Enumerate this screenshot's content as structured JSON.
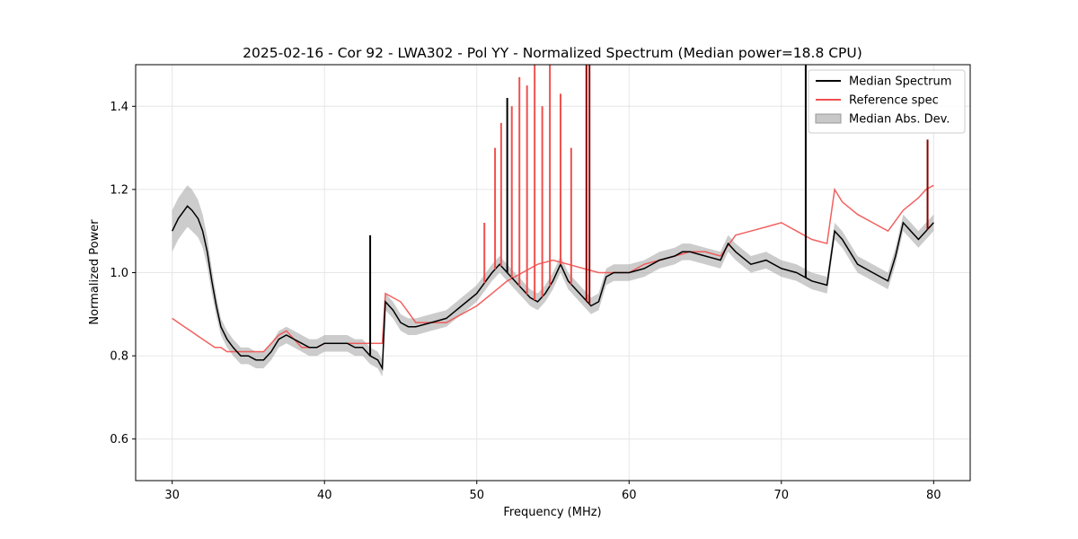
{
  "chart_data": {
    "type": "line",
    "title": "2025-02-16 - Cor 92 - LWA302 - Pol YY - Normalized Spectrum (Median power=18.8 CPU)",
    "xlabel": "Frequency (MHz)",
    "ylabel": "Normalized Power",
    "xlim": [
      27.6,
      82.4
    ],
    "ylim": [
      0.5,
      1.5
    ],
    "xticks": [
      30,
      40,
      50,
      60,
      70,
      80
    ],
    "yticks": [
      0.6,
      0.8,
      1.0,
      1.2,
      1.4
    ],
    "grid": true,
    "legend_position": "top-right",
    "series": [
      {
        "name": "Median Spectrum",
        "color": "#000000",
        "x": [
          30,
          30.4,
          30.8,
          31.0,
          31.3,
          31.7,
          32.0,
          32.3,
          32.6,
          32.9,
          33.2,
          33.6,
          34.0,
          34.5,
          35.0,
          35.5,
          36.0,
          36.5,
          37.0,
          37.5,
          38.0,
          38.5,
          39.0,
          39.5,
          40.0,
          40.5,
          41.0,
          41.5,
          42.0,
          42.5,
          43.0,
          43.5,
          43.8,
          44.0,
          44.5,
          45.0,
          45.5,
          46.0,
          47.0,
          48.0,
          49.0,
          50.0,
          51.0,
          51.5,
          52.0,
          52.5,
          53.0,
          53.5,
          54.0,
          54.5,
          55.0,
          55.5,
          56.0,
          56.5,
          57.0,
          57.5,
          58.0,
          58.5,
          59.0,
          60.0,
          61.0,
          62.0,
          63.0,
          63.5,
          64.0,
          65.0,
          66.0,
          66.5,
          67.0,
          68.0,
          69.0,
          70.0,
          71.0,
          72.0,
          73.0,
          73.5,
          74.0,
          74.5,
          75.0,
          76.0,
          77.0,
          77.5,
          78.0,
          78.5,
          79.0,
          79.5,
          80.0
        ],
        "y": [
          1.1,
          1.13,
          1.15,
          1.16,
          1.15,
          1.13,
          1.1,
          1.05,
          0.98,
          0.92,
          0.87,
          0.84,
          0.82,
          0.8,
          0.8,
          0.79,
          0.79,
          0.81,
          0.84,
          0.85,
          0.84,
          0.83,
          0.82,
          0.82,
          0.83,
          0.83,
          0.83,
          0.83,
          0.82,
          0.82,
          0.8,
          0.79,
          0.77,
          0.93,
          0.91,
          0.88,
          0.87,
          0.87,
          0.88,
          0.89,
          0.92,
          0.95,
          1.0,
          1.02,
          1.0,
          0.98,
          0.96,
          0.94,
          0.93,
          0.95,
          0.98,
          1.02,
          0.98,
          0.96,
          0.94,
          0.92,
          0.93,
          0.99,
          1.0,
          1.0,
          1.01,
          1.03,
          1.04,
          1.05,
          1.05,
          1.04,
          1.03,
          1.07,
          1.05,
          1.02,
          1.03,
          1.01,
          1.0,
          0.98,
          0.97,
          1.1,
          1.08,
          1.05,
          1.02,
          1.0,
          0.98,
          1.04,
          1.12,
          1.1,
          1.08,
          1.1,
          1.12
        ]
      },
      {
        "name": "Reference spec",
        "color": "#f0504f",
        "x": [
          30,
          30.4,
          30.8,
          31.2,
          31.6,
          32.0,
          32.4,
          32.8,
          33.2,
          33.6,
          34.0,
          34.5,
          35.0,
          35.5,
          36.0,
          36.5,
          37.0,
          37.5,
          38.0,
          38.5,
          39.0,
          39.5,
          40.0,
          41.0,
          42.0,
          43.0,
          43.8,
          44.0,
          45.0,
          46.0,
          47.0,
          48.0,
          49.0,
          50.0,
          51.0,
          52.0,
          53.0,
          54.0,
          55.0,
          56.0,
          57.0,
          58.0,
          59.0,
          60.0,
          61.0,
          62.0,
          63.0,
          64.0,
          65.0,
          66.0,
          67.0,
          68.0,
          69.0,
          70.0,
          71.0,
          72.0,
          73.0,
          73.5,
          74.0,
          75.0,
          76.0,
          77.0,
          78.0,
          79.0,
          79.5,
          80.0
        ],
        "y": [
          0.89,
          0.88,
          0.87,
          0.86,
          0.85,
          0.84,
          0.83,
          0.82,
          0.82,
          0.81,
          0.81,
          0.81,
          0.81,
          0.81,
          0.81,
          0.83,
          0.85,
          0.86,
          0.84,
          0.82,
          0.82,
          0.82,
          0.83,
          0.83,
          0.83,
          0.83,
          0.83,
          0.95,
          0.93,
          0.88,
          0.88,
          0.88,
          0.9,
          0.92,
          0.95,
          0.98,
          1.0,
          1.02,
          1.03,
          1.02,
          1.01,
          1.0,
          1.0,
          1.0,
          1.02,
          1.03,
          1.04,
          1.05,
          1.05,
          1.04,
          1.09,
          1.1,
          1.11,
          1.12,
          1.1,
          1.08,
          1.07,
          1.2,
          1.17,
          1.14,
          1.12,
          1.1,
          1.15,
          1.18,
          1.2,
          1.21
        ]
      }
    ],
    "band": {
      "name": "Median Abs. Dev.",
      "color": "#999999",
      "halfwidth": [
        0.05,
        0.05,
        0.05,
        0.05,
        0.05,
        0.045,
        0.04,
        0.035,
        0.03,
        0.025,
        0.02,
        0.02,
        0.02,
        0.02,
        0.02,
        0.02,
        0.02,
        0.02,
        0.02,
        0.02,
        0.02,
        0.02,
        0.02,
        0.02,
        0.02,
        0.02,
        0.02,
        0.02,
        0.02,
        0.02,
        0.02,
        0.02,
        0.02,
        0.02,
        0.02,
        0.02,
        0.02,
        0.02,
        0.02,
        0.02,
        0.02,
        0.02,
        0.02,
        0.02,
        0.02,
        0.02,
        0.02,
        0.02,
        0.02,
        0.02,
        0.02,
        0.02,
        0.02,
        0.02,
        0.02,
        0.02,
        0.02,
        0.02,
        0.02,
        0.02,
        0.02,
        0.02,
        0.02,
        0.02,
        0.02,
        0.02,
        0.02,
        0.02,
        0.02,
        0.02,
        0.02,
        0.02,
        0.02,
        0.02,
        0.02,
        0.02,
        0.02,
        0.02,
        0.02,
        0.02,
        0.02,
        0.02,
        0.02,
        0.02,
        0.02,
        0.02,
        0.02
      ]
    },
    "spikes": [
      {
        "x": 43.0,
        "y": 1.09,
        "color": "#000000"
      },
      {
        "x": 50.5,
        "y": 1.12,
        "color": "#f0504f"
      },
      {
        "x": 51.2,
        "y": 1.3,
        "color": "#f0504f"
      },
      {
        "x": 51.6,
        "y": 1.36,
        "color": "#f0504f"
      },
      {
        "x": 52.0,
        "y": 1.42,
        "color": "#000000"
      },
      {
        "x": 52.3,
        "y": 1.4,
        "color": "#f0504f"
      },
      {
        "x": 52.8,
        "y": 1.47,
        "color": "#f0504f"
      },
      {
        "x": 53.3,
        "y": 1.45,
        "color": "#f0504f"
      },
      {
        "x": 53.8,
        "y": 1.5,
        "color": "#f0504f"
      },
      {
        "x": 54.3,
        "y": 1.4,
        "color": "#f0504f"
      },
      {
        "x": 54.8,
        "y": 1.5,
        "color": "#f0504f"
      },
      {
        "x": 55.5,
        "y": 1.43,
        "color": "#f0504f"
      },
      {
        "x": 56.2,
        "y": 1.3,
        "color": "#f0504f"
      },
      {
        "x": 57.2,
        "y": 1.5,
        "color": "#8b0000"
      },
      {
        "x": 57.4,
        "y": 1.5,
        "color": "#8b0000"
      },
      {
        "x": 71.6,
        "y": 1.5,
        "color": "#000000"
      },
      {
        "x": 79.6,
        "y": 1.32,
        "color": "#8b0000"
      }
    ],
    "legend": [
      {
        "label": "Median Spectrum",
        "kind": "line",
        "color": "#000000"
      },
      {
        "label": "Reference spec",
        "kind": "line",
        "color": "#f0504f"
      },
      {
        "label": "Median Abs. Dev.",
        "kind": "patch",
        "color": "#c8c8c8"
      }
    ]
  }
}
